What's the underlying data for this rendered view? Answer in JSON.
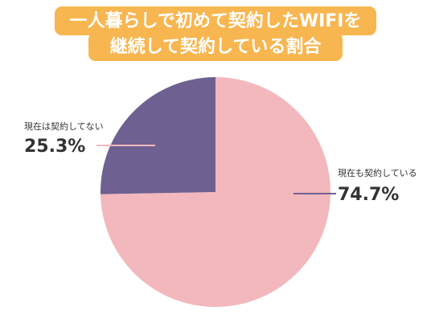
{
  "chart_data": {
    "type": "pie",
    "title": [
      "一人暮らしで初めて契約したWIFIを",
      "継続して契約している割合"
    ],
    "categories": [
      "現在も契約している",
      "現在は契約してない"
    ],
    "values": [
      74.7,
      25.3
    ],
    "value_labels": [
      "74.7%",
      "25.3%"
    ],
    "colors": [
      "#f2b8bd",
      "#6e6090"
    ]
  }
}
